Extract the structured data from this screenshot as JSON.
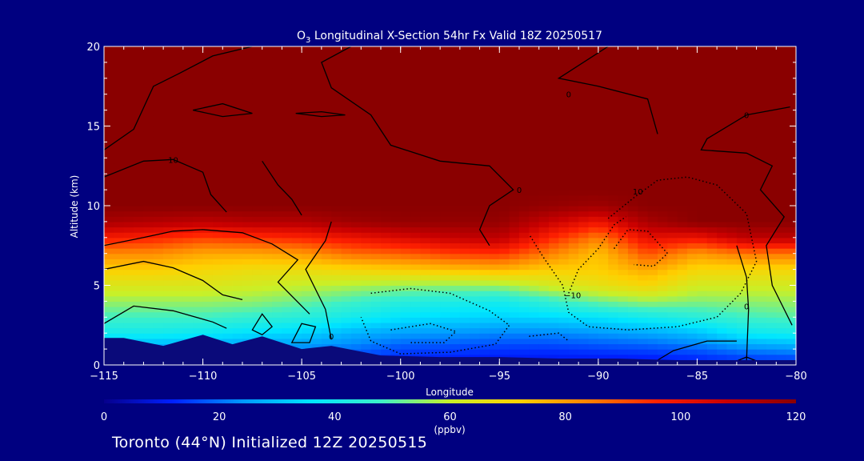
{
  "chart_data": {
    "type": "heatmap",
    "title_species": "O",
    "title_sub": "3",
    "title_rest": " Longitudinal X-Section 54hr  Fx Valid 18Z 20250517",
    "xlabel": "Longitude",
    "ylabel": "Altitude (km)",
    "xlim": [
      -115,
      -80
    ],
    "ylim": [
      0,
      20
    ],
    "xticks": [
      -115,
      -110,
      -105,
      -100,
      -95,
      -90,
      -85,
      -80
    ],
    "yticks": [
      0,
      5,
      10,
      15,
      20
    ],
    "x_tick_labels": [
      "−115",
      "−110",
      "−105",
      "−100",
      "−95",
      "−90",
      "−85",
      "−80"
    ],
    "y_tick_labels": [
      "0",
      "5",
      "10",
      "15",
      "20"
    ],
    "colorbar": {
      "label": "(ppbv)",
      "min": 0,
      "max": 120,
      "ticks": [
        0,
        20,
        40,
        60,
        80,
        100,
        120
      ],
      "tick_labels": [
        "0",
        "20",
        "40",
        "60",
        "80",
        "100",
        "120"
      ]
    },
    "longitudes": [
      -115,
      -112.5,
      -110,
      -107.5,
      -105,
      -102.5,
      -100,
      -97.5,
      -95,
      -92.5,
      -90,
      -87.5,
      -85,
      -82.5,
      -80
    ],
    "altitudes": [
      0,
      1,
      2,
      3,
      4,
      5,
      6,
      7,
      8,
      9,
      10,
      11,
      12,
      20
    ],
    "ozone_ppbv": [
      [
        14,
        14,
        14,
        12,
        12,
        12,
        10,
        10,
        9,
        8,
        8,
        8,
        9,
        10,
        10
      ],
      [
        24,
        24,
        24,
        22,
        22,
        20,
        16,
        15,
        14,
        14,
        15,
        16,
        18,
        22,
        24
      ],
      [
        40,
        40,
        38,
        35,
        33,
        28,
        25,
        24,
        22,
        22,
        24,
        26,
        30,
        38,
        40
      ],
      [
        48,
        48,
        48,
        46,
        44,
        40,
        36,
        34,
        33,
        34,
        36,
        40,
        44,
        48,
        50
      ],
      [
        56,
        56,
        56,
        55,
        52,
        48,
        44,
        42,
        40,
        46,
        52,
        56,
        54,
        55,
        56
      ],
      [
        64,
        64,
        64,
        62,
        60,
        58,
        56,
        55,
        56,
        62,
        66,
        70,
        62,
        62,
        62
      ],
      [
        72,
        72,
        70,
        68,
        68,
        70,
        72,
        74,
        76,
        72,
        72,
        78,
        70,
        70,
        70
      ],
      [
        82,
        82,
        78,
        78,
        80,
        86,
        88,
        92,
        94,
        84,
        74,
        90,
        80,
        85,
        85
      ],
      [
        98,
        96,
        92,
        94,
        96,
        100,
        104,
        108,
        110,
        96,
        84,
        102,
        100,
        110,
        110
      ],
      [
        114,
        112,
        110,
        112,
        112,
        116,
        118,
        118,
        118,
        108,
        100,
        114,
        120,
        120,
        120
      ],
      [
        120,
        120,
        120,
        120,
        120,
        120,
        120,
        120,
        120,
        118,
        116,
        120,
        120,
        120,
        120
      ],
      [
        120,
        120,
        120,
        120,
        120,
        120,
        120,
        120,
        120,
        120,
        120,
        120,
        120,
        120,
        120
      ],
      [
        120,
        120,
        120,
        120,
        120,
        120,
        120,
        120,
        120,
        120,
        120,
        120,
        120,
        120,
        120
      ],
      [
        120,
        120,
        120,
        120,
        120,
        120,
        120,
        120,
        120,
        120,
        120,
        120,
        120,
        120,
        120
      ]
    ],
    "terrain_km": [
      [
        -115,
        1.7
      ],
      [
        -114,
        1.7
      ],
      [
        -112,
        1.2
      ],
      [
        -110,
        1.9
      ],
      [
        -108.5,
        1.3
      ],
      [
        -107,
        1.8
      ],
      [
        -105,
        1.0
      ],
      [
        -103.5,
        1.2
      ],
      [
        -101,
        0.6
      ],
      [
        -98,
        0.5
      ],
      [
        -95,
        0.5
      ],
      [
        -92,
        0.4
      ],
      [
        -89,
        0.4
      ],
      [
        -86,
        0.3
      ],
      [
        -83,
        0.3
      ],
      [
        -80,
        0.3
      ]
    ],
    "contour_labels": [
      {
        "text": "10",
        "x": -111.5,
        "y": 12.9
      },
      {
        "text": "10",
        "x": -88,
        "y": 10.9
      },
      {
        "text": "0",
        "x": -94,
        "y": 11.0
      },
      {
        "text": "0",
        "x": -91.5,
        "y": 17.0
      },
      {
        "text": "0",
        "x": -82.5,
        "y": 15.7
      },
      {
        "text": "0",
        "x": -103.5,
        "y": 1.8
      },
      {
        "text": "0",
        "x": -82.5,
        "y": 3.7
      },
      {
        "text": "−10",
        "x": -91.3,
        "y": 4.4
      }
    ],
    "colors": {
      "background": "#000080",
      "stops": [
        "#06008c",
        "#0020ff",
        "#0098ff",
        "#00e6ff",
        "#3df0c8",
        "#c8f028",
        "#ffd000",
        "#ff8000",
        "#ff2000",
        "#c80000",
        "#8a0000"
      ]
    }
  },
  "footer": "Toronto (44°N) Initialized 12Z 20250515"
}
